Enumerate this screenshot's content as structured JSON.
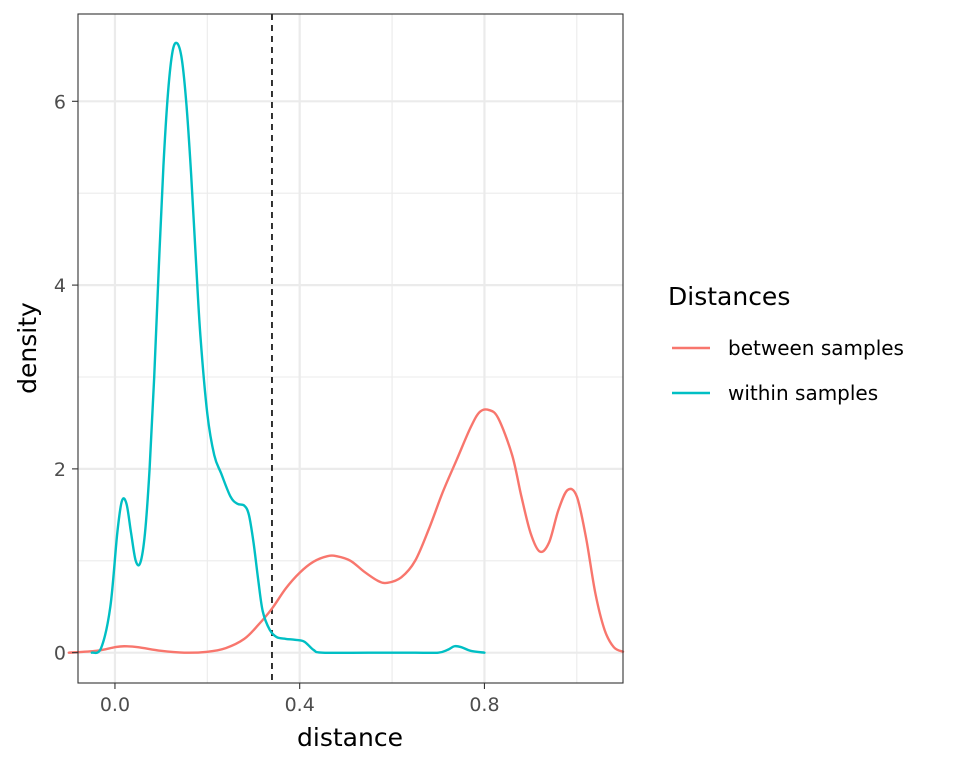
{
  "chart_data": {
    "type": "line",
    "xlabel": "distance",
    "ylabel": "density",
    "xlim": [
      -0.08,
      1.1
    ],
    "ylim": [
      -0.33,
      6.95
    ],
    "x_ticks": [
      0.0,
      0.4,
      0.8
    ],
    "x_tick_labels": [
      "0.0",
      "0.4",
      "0.8"
    ],
    "x_minor_ticks": [
      0.2,
      0.6,
      1.0
    ],
    "y_ticks": [
      0,
      2,
      4,
      6
    ],
    "y_tick_labels": [
      "0",
      "2",
      "4",
      "6"
    ],
    "y_minor_ticks": [
      1,
      3,
      5
    ],
    "grid": true,
    "legend": {
      "title": "Distances",
      "position": "right",
      "entries": [
        {
          "label": "between samples",
          "color": "#F8766D"
        },
        {
          "label": "within samples",
          "color": "#00BFC4"
        }
      ]
    },
    "vline": {
      "x": 0.34,
      "style": "dashed",
      "color": "#000000"
    },
    "series": [
      {
        "name": "between samples",
        "color": "#F8766D",
        "points": [
          [
            -0.1,
            0.0
          ],
          [
            -0.04,
            0.02
          ],
          [
            0.0,
            0.06
          ],
          [
            0.02,
            0.07
          ],
          [
            0.05,
            0.06
          ],
          [
            0.1,
            0.02
          ],
          [
            0.15,
            0.0
          ],
          [
            0.2,
            0.01
          ],
          [
            0.24,
            0.05
          ],
          [
            0.28,
            0.15
          ],
          [
            0.31,
            0.3
          ],
          [
            0.34,
            0.48
          ],
          [
            0.37,
            0.7
          ],
          [
            0.4,
            0.87
          ],
          [
            0.43,
            0.99
          ],
          [
            0.46,
            1.05
          ],
          [
            0.48,
            1.05
          ],
          [
            0.51,
            1.0
          ],
          [
            0.54,
            0.88
          ],
          [
            0.57,
            0.78
          ],
          [
            0.59,
            0.76
          ],
          [
            0.62,
            0.82
          ],
          [
            0.65,
            1.0
          ],
          [
            0.68,
            1.35
          ],
          [
            0.71,
            1.75
          ],
          [
            0.74,
            2.1
          ],
          [
            0.77,
            2.45
          ],
          [
            0.79,
            2.62
          ],
          [
            0.81,
            2.64
          ],
          [
            0.83,
            2.55
          ],
          [
            0.86,
            2.15
          ],
          [
            0.88,
            1.7
          ],
          [
            0.9,
            1.3
          ],
          [
            0.92,
            1.1
          ],
          [
            0.94,
            1.2
          ],
          [
            0.96,
            1.55
          ],
          [
            0.98,
            1.77
          ],
          [
            1.0,
            1.7
          ],
          [
            1.02,
            1.25
          ],
          [
            1.04,
            0.65
          ],
          [
            1.06,
            0.25
          ],
          [
            1.08,
            0.06
          ],
          [
            1.1,
            0.01
          ]
        ]
      },
      {
        "name": "within samples",
        "color": "#00BFC4",
        "points": [
          [
            -0.05,
            0.0
          ],
          [
            -0.03,
            0.05
          ],
          [
            -0.01,
            0.5
          ],
          [
            0.005,
            1.3
          ],
          [
            0.015,
            1.65
          ],
          [
            0.025,
            1.62
          ],
          [
            0.035,
            1.3
          ],
          [
            0.045,
            1.0
          ],
          [
            0.055,
            0.98
          ],
          [
            0.065,
            1.3
          ],
          [
            0.075,
            2.0
          ],
          [
            0.085,
            3.0
          ],
          [
            0.095,
            4.2
          ],
          [
            0.105,
            5.3
          ],
          [
            0.115,
            6.1
          ],
          [
            0.125,
            6.55
          ],
          [
            0.135,
            6.63
          ],
          [
            0.145,
            6.45
          ],
          [
            0.155,
            5.95
          ],
          [
            0.165,
            5.2
          ],
          [
            0.175,
            4.3
          ],
          [
            0.185,
            3.45
          ],
          [
            0.2,
            2.6
          ],
          [
            0.215,
            2.15
          ],
          [
            0.23,
            1.95
          ],
          [
            0.25,
            1.7
          ],
          [
            0.265,
            1.62
          ],
          [
            0.28,
            1.6
          ],
          [
            0.29,
            1.5
          ],
          [
            0.3,
            1.2
          ],
          [
            0.31,
            0.8
          ],
          [
            0.32,
            0.45
          ],
          [
            0.335,
            0.25
          ],
          [
            0.35,
            0.17
          ],
          [
            0.37,
            0.15
          ],
          [
            0.39,
            0.14
          ],
          [
            0.41,
            0.12
          ],
          [
            0.43,
            0.03
          ],
          [
            0.45,
            0.0
          ],
          [
            0.55,
            0.0
          ],
          [
            0.65,
            0.0
          ],
          [
            0.7,
            0.0
          ],
          [
            0.72,
            0.03
          ],
          [
            0.735,
            0.07
          ],
          [
            0.75,
            0.06
          ],
          [
            0.77,
            0.02
          ],
          [
            0.8,
            0.0
          ]
        ]
      }
    ]
  }
}
